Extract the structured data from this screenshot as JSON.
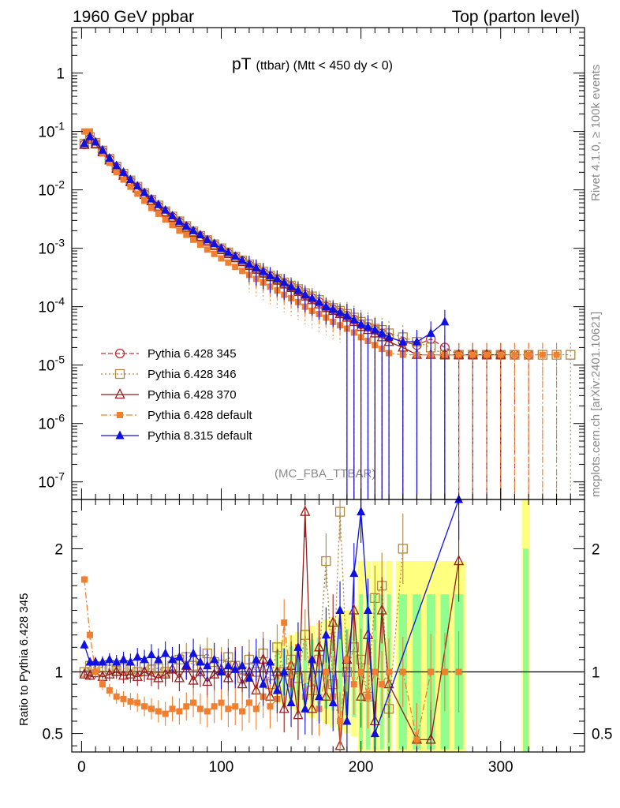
{
  "header": {
    "left": "1960 GeV ppbar",
    "right": "Top (parton level)"
  },
  "side_labels": {
    "rivet": "Rivet 4.1.0, ≥ 100k events",
    "mcplots": "mcplots.cern.ch [arXiv:2401.10621]"
  },
  "watermark": "(MC_FBA_TTBAR)",
  "colors": {
    "p345": "#c0303a",
    "p346": "#b08840",
    "p370": "#9a1a1a",
    "pdef": "#f08030",
    "p8": "#1010e0",
    "band_yellow": "#ffff80",
    "band_green": "#90ff90"
  },
  "chart_data": [
    {
      "type": "line",
      "panel": "main",
      "title": "pT (ttbar) (Mtt < 450 dy < 0)",
      "title_main": "pT",
      "title_sub": "(ttbar) (Mtt < 450 dy < 0)",
      "yscale": "log",
      "ylim": [
        5e-08,
        6
      ],
      "xlim": [
        -7,
        360
      ],
      "y_tick_labels": [
        "10^-7",
        "10^-6",
        "10^-5",
        "10^-4",
        "10^-3",
        "10^-2",
        "10^-1",
        "1"
      ],
      "legend_position": "bottom-left",
      "x": [
        2,
        6,
        10,
        15,
        20,
        25,
        30,
        35,
        40,
        45,
        50,
        55,
        60,
        65,
        70,
        75,
        80,
        85,
        90,
        95,
        100,
        105,
        110,
        115,
        120,
        125,
        130,
        135,
        140,
        145,
        150,
        155,
        160,
        165,
        170,
        175,
        180,
        185,
        190,
        195,
        200,
        205,
        210,
        215,
        220,
        230,
        240,
        250,
        260,
        270,
        280,
        290,
        300,
        310,
        320,
        330,
        340,
        350
      ],
      "series": [
        {
          "name": "Pythia 6.428 345",
          "color_key": "p345",
          "marker": "circle-open",
          "dash": "6,3",
          "values": [
            0.06,
            0.075,
            0.062,
            0.045,
            0.033,
            0.024,
            0.018,
            0.014,
            0.011,
            0.0085,
            0.0066,
            0.0052,
            0.0042,
            0.0034,
            0.0028,
            0.0023,
            0.0019,
            0.0016,
            0.00135,
            0.00114,
            0.00096,
            0.00082,
            0.0007,
            0.0006,
            0.00051,
            0.00044,
            0.00038,
            0.00033,
            0.00029,
            0.00025,
            0.00022,
            0.00019,
            0.00016,
            0.00014,
            0.00012,
            0.0001,
            9e-05,
            8e-05,
            7e-05,
            6e-05,
            5e-05,
            4.5e-05,
            4e-05,
            3.5e-05,
            3e-05,
            2.5e-05,
            2.2e-05,
            2.8e-05,
            2e-05,
            1.5e-05,
            1.5e-05,
            1.5e-05,
            1.5e-05,
            1.5e-05,
            1.5e-05,
            null,
            null,
            null
          ]
        },
        {
          "name": "Pythia 6.428 346",
          "color_key": "p346",
          "marker": "square-open",
          "dash": "2,3",
          "values": [
            0.062,
            0.08,
            0.064,
            0.047,
            0.034,
            0.025,
            0.019,
            0.0145,
            0.0113,
            0.0088,
            0.0068,
            0.0054,
            0.0043,
            0.0035,
            0.0029,
            0.0024,
            0.00195,
            0.00163,
            0.00138,
            0.00117,
            0.001,
            0.00085,
            0.00072,
            0.00062,
            0.00053,
            0.00046,
            0.0004,
            0.00034,
            0.0003,
            0.00026,
            0.00023,
            0.0002,
            0.00017,
            0.00015,
            0.00013,
            0.000105,
            9.5e-05,
            8.5e-05,
            7.5e-05,
            6.5e-05,
            5.5e-05,
            5e-05,
            4.2e-05,
            4e-05,
            3.5e-05,
            3e-05,
            2.5e-05,
            2e-05,
            1.5e-05,
            1.5e-05,
            1.5e-05,
            1.5e-05,
            1.5e-05,
            1.5e-05,
            1.5e-05,
            1.5e-05,
            1.5e-05,
            1.5e-05
          ]
        },
        {
          "name": "Pythia 6.428 370",
          "color_key": "p370",
          "marker": "triangle-open",
          "dash": "",
          "values": [
            0.059,
            0.073,
            0.06,
            0.044,
            0.032,
            0.023,
            0.0175,
            0.0135,
            0.0106,
            0.0082,
            0.0064,
            0.005,
            0.0041,
            0.0033,
            0.0027,
            0.0022,
            0.00185,
            0.00155,
            0.0013,
            0.0011,
            0.00093,
            0.0008,
            0.00068,
            0.00058,
            0.0005,
            0.00043,
            0.00037,
            0.00032,
            0.00028,
            0.00024,
            0.00021,
            0.00018,
            0.00015,
            0.00013,
            0.00011,
            9.5e-05,
            8.5e-05,
            7.5e-05,
            6.5e-05,
            5.5e-05,
            4.5e-05,
            4e-05,
            3.5e-05,
            3e-05,
            2.5e-05,
            2e-05,
            1.5e-05,
            1.5e-05,
            1.5e-05,
            1.5e-05,
            1.5e-05,
            1.5e-05,
            1.5e-05,
            null,
            null,
            null,
            null,
            null
          ]
        },
        {
          "name": "Pythia 6.428 default",
          "color_key": "pdef",
          "marker": "square-filled",
          "dash": "8,3,2,3",
          "values": [
            0.1,
            0.1,
            0.065,
            0.042,
            0.029,
            0.02,
            0.015,
            0.0113,
            0.0086,
            0.0065,
            0.0049,
            0.0039,
            0.0031,
            0.0025,
            0.002,
            0.0017,
            0.0014,
            0.00115,
            0.00095,
            0.0008,
            0.00067,
            0.00057,
            0.00048,
            0.00041,
            0.00035,
            0.0003,
            0.00026,
            0.00022,
            0.00019,
            0.00016,
            0.00014,
            0.00012,
            0.0001,
            8.5e-05,
            7.5e-05,
            6.5e-05,
            5.5e-05,
            4.8e-05,
            4.2e-05,
            3.6e-05,
            3e-05,
            2.6e-05,
            2.2e-05,
            1.9e-05,
            1.6e-05,
            1.5e-05,
            1.5e-05,
            1.5e-05,
            1.5e-05,
            1.5e-05,
            1.5e-05,
            1.5e-05,
            1.5e-05,
            1.5e-05,
            1.5e-05,
            1.5e-05,
            1.5e-05,
            null
          ]
        },
        {
          "name": "Pythia 8.315 default",
          "color_key": "p8",
          "marker": "triangle-filled",
          "dash": "",
          "values": [
            0.062,
            0.082,
            0.066,
            0.048,
            0.035,
            0.026,
            0.02,
            0.015,
            0.0117,
            0.009,
            0.007,
            0.0056,
            0.0045,
            0.0036,
            0.0029,
            0.0024,
            0.002,
            0.0017,
            0.0014,
            0.0012,
            0.001,
            0.00085,
            0.00073,
            0.00062,
            0.00053,
            0.00046,
            0.0004,
            0.00034,
            0.0003,
            0.00026,
            0.00022,
            0.00019,
            0.00016,
            0.00014,
            0.00012,
            0.0001,
            9e-05,
            8e-05,
            7e-05,
            6e-05,
            5e-05,
            4.5e-05,
            4e-05,
            3.5e-05,
            3e-05,
            2.5e-05,
            2.5e-05,
            3.5e-05,
            5.5e-05,
            null,
            null,
            null,
            null,
            null,
            null,
            null,
            null,
            null
          ]
        }
      ]
    },
    {
      "type": "line",
      "panel": "ratio",
      "ylabel": "Ratio to Pythia 6.428 345",
      "ylim": [
        0.35,
        2.4
      ],
      "xlim": [
        -7,
        360
      ],
      "y_tick_labels": [
        "0.5",
        "1",
        "2"
      ],
      "x_tick_labels": [
        "0",
        "100",
        "200",
        "300"
      ],
      "x_ticks": [
        0,
        100,
        200,
        300
      ],
      "x": [
        2,
        6,
        10,
        15,
        20,
        25,
        30,
        35,
        40,
        45,
        50,
        55,
        60,
        65,
        70,
        75,
        80,
        85,
        90,
        95,
        100,
        105,
        110,
        115,
        120,
        125,
        130,
        135,
        140,
        145,
        150,
        155,
        160,
        165,
        170,
        175,
        180,
        185,
        190,
        195,
        200,
        205,
        210,
        215,
        220,
        230,
        240,
        250,
        260,
        270
      ],
      "series": [
        {
          "name": "Pythia 6.428 346",
          "color_key": "p346",
          "marker": "square-open",
          "dash": "2,3",
          "values": [
            1.0,
            1.05,
            1.03,
            1.04,
            1.02,
            1.01,
            1.03,
            1.02,
            1.0,
            1.04,
            1.02,
            1.03,
            1.0,
            1.05,
            1.1,
            1.12,
            1.05,
            1.1,
            1.15,
            1.08,
            1.06,
            1.12,
            1.05,
            0.95,
            1.1,
            1.0,
            1.15,
            0.9,
            1.2,
            1.0,
            1.1,
            0.95,
            1.3,
            0.85,
            1.1,
            1.9,
            0.9,
            2.3,
            1.0,
            1.2,
            1.1,
            0.8,
            1.6,
            1.7,
            0.7,
            2.0,
            null,
            null,
            null,
            null
          ]
        },
        {
          "name": "Pythia 6.428 370",
          "color_key": "p370",
          "marker": "triangle-open",
          "dash": "",
          "values": [
            0.98,
            0.97,
            0.99,
            0.96,
            0.98,
            1.0,
            0.97,
            0.98,
            0.96,
            1.0,
            0.97,
            0.95,
            0.98,
            1.02,
            0.95,
            1.05,
            0.93,
            1.0,
            0.92,
            0.98,
            1.02,
            0.95,
            1.05,
            0.9,
            1.0,
            0.85,
            1.1,
            0.8,
            1.0,
            0.7,
            1.05,
            0.65,
            2.3,
            0.7,
            1.2,
            0.8,
            1.4,
            0.4,
            1.1,
            1.5,
            0.8,
            1.3,
            0.6,
            1.5,
            0.9,
            null,
            0.45,
            0.45,
            null,
            1.9
          ]
        },
        {
          "name": "Pythia 6.428 default",
          "color_key": "pdef",
          "marker": "square-filled",
          "dash": "8,3,2,3",
          "values": [
            1.75,
            1.3,
            1.0,
            0.9,
            0.85,
            0.8,
            0.78,
            0.76,
            0.75,
            0.72,
            0.7,
            0.68,
            0.66,
            0.7,
            0.68,
            0.72,
            0.75,
            0.7,
            0.68,
            0.72,
            0.75,
            0.7,
            0.72,
            0.68,
            0.75,
            0.7,
            0.8,
            0.72,
            0.78,
            1.4,
            0.9,
            1.2,
            0.8,
            1.1,
            0.7,
            1.0,
            0.8,
            0.6,
            1.1,
            0.9,
            1.0,
            0.8,
            1.0,
            0.9,
            1.0,
            1.0,
            0.45,
            1.0,
            1.0,
            1.0
          ]
        },
        {
          "name": "Pythia 8.315 default",
          "color_key": "p8",
          "marker": "triangle-filled",
          "dash": "",
          "values": [
            1.22,
            1.08,
            1.08,
            1.08,
            1.1,
            1.08,
            1.1,
            1.08,
            1.12,
            1.1,
            1.14,
            1.1,
            1.15,
            1.1,
            1.12,
            1.05,
            1.15,
            1.08,
            1.05,
            1.1,
            1.0,
            1.05,
            1.02,
            1.05,
            0.95,
            1.1,
            0.9,
            1.08,
            0.85,
            1.0,
            0.75,
            1.2,
            0.7,
            1.1,
            0.8,
            1.3,
            0.75,
            1.5,
            0.6,
            1.8,
            2.3,
            1.5,
            0.5,
            null,
            null,
            null,
            null,
            null,
            null,
            2.4
          ]
        }
      ]
    }
  ]
}
